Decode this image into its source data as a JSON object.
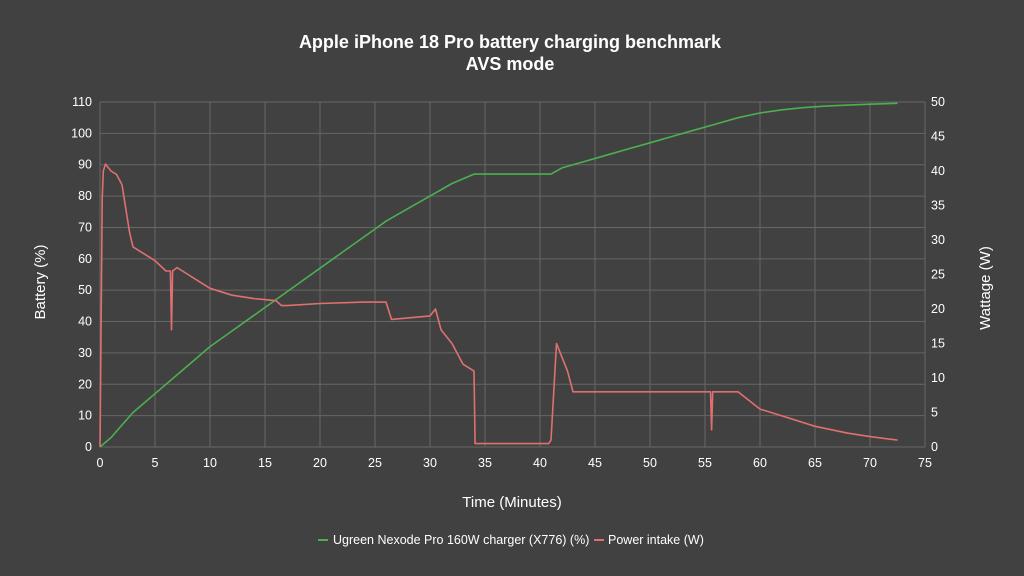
{
  "chart_data": {
    "type": "line",
    "title": "Apple iPhone 18 Pro battery charging benchmark",
    "subtitle": "AVS mode",
    "xlabel": "Time (Minutes)",
    "ylabel_left": "Battery (%)",
    "ylabel_right": "Wattage (W)",
    "xlim": [
      0,
      75
    ],
    "ylim_left": [
      0,
      110
    ],
    "ylim_right": [
      0,
      50
    ],
    "x_ticks": [
      0,
      5,
      10,
      15,
      20,
      25,
      30,
      35,
      40,
      45,
      50,
      55,
      60,
      65,
      70,
      75
    ],
    "y_ticks_left": [
      0,
      10,
      20,
      30,
      40,
      50,
      60,
      70,
      80,
      90,
      100,
      110
    ],
    "y_ticks_right": [
      0,
      5,
      10,
      15,
      20,
      25,
      30,
      35,
      40,
      45,
      50
    ],
    "grid": true,
    "legend_position": "bottom",
    "series": [
      {
        "name": "Ugreen Nexode Pro 160W charger (X776) (%)",
        "axis": "left",
        "color": "#4caf50",
        "x": [
          0,
          1,
          2,
          3,
          4,
          5,
          6,
          8,
          10,
          12,
          14,
          16,
          18,
          20,
          22,
          24,
          26,
          28,
          30,
          32,
          34,
          36,
          38,
          40,
          41,
          42,
          44,
          46,
          48,
          50,
          52,
          54,
          56,
          58,
          60,
          62,
          64,
          66,
          68,
          70,
          72.5
        ],
        "y": [
          0,
          3,
          7,
          11,
          14,
          17,
          20,
          26,
          32,
          37,
          42,
          47,
          52,
          57,
          62,
          67,
          72,
          76,
          80,
          84,
          87,
          87,
          87,
          87,
          87,
          89,
          91,
          93,
          95,
          97,
          99,
          101,
          103,
          105,
          106.5,
          107.5,
          108.2,
          108.7,
          109,
          109.3,
          109.6
        ]
      },
      {
        "name": "Power intake (W)",
        "axis": "right",
        "color": "#e07070",
        "x": [
          0,
          0.2,
          0.3,
          0.5,
          1,
          1.5,
          2,
          2.3,
          2.7,
          3,
          4,
          5,
          6,
          6.4,
          6.5,
          6.6,
          7,
          8,
          9,
          10,
          12,
          14,
          16,
          16.5,
          17,
          20,
          24,
          26,
          26.5,
          30,
          30.5,
          31,
          32,
          33,
          34,
          34.1,
          35,
          38,
          40.8,
          41,
          41.5,
          42,
          42.5,
          43,
          45,
          50,
          55,
          55.5,
          55.6,
          55.7,
          58,
          60,
          62,
          65,
          68,
          70,
          72.5
        ],
        "y": [
          0,
          36,
          40,
          41,
          40,
          39.5,
          38,
          35,
          31,
          29,
          28,
          27,
          25.5,
          25.5,
          17,
          25.5,
          26,
          25,
          24,
          23,
          22,
          21.5,
          21.2,
          20.5,
          20.5,
          20.8,
          21,
          21,
          18.5,
          19,
          20,
          17,
          15,
          12,
          11,
          0.5,
          0.5,
          0.5,
          0.5,
          1,
          15,
          13,
          11,
          8,
          8,
          8,
          8,
          8,
          2.5,
          8,
          8,
          5.5,
          4.5,
          3,
          2,
          1.5,
          1
        ]
      }
    ]
  }
}
